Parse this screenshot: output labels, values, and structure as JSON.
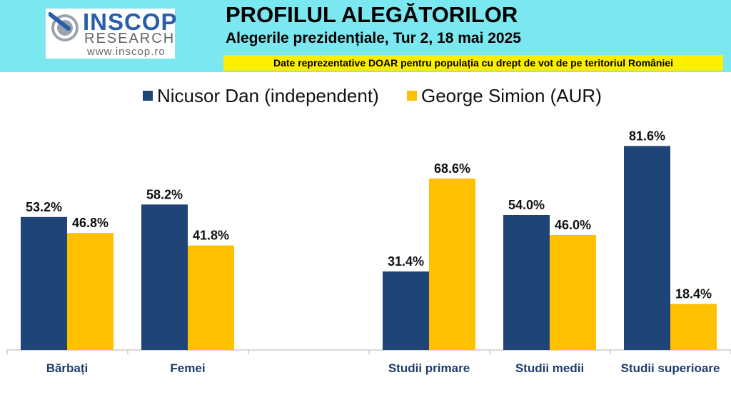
{
  "logo": {
    "name": "INSCOP",
    "sub": "RESEARCH",
    "url": "www.inscop.ro"
  },
  "header": {
    "title": "PROFILUL ALEGĂTORILOR",
    "subtitle": "Alegerile prezidențiale, Tur 2, 18 mai 2025",
    "banner": "Date reprezentative DOAR pentru populația cu drept de vot de pe teritoriul României"
  },
  "colors": {
    "header_bg": "#7be7f0",
    "banner_bg": "#ffee00",
    "series_1": "#1f4478",
    "series_2": "#ffc000",
    "axis": "#b0b0b0",
    "category_text": "#1f3d6b"
  },
  "chart_data": {
    "type": "bar",
    "categories": [
      "Bărbați",
      "Femei",
      "",
      "Studii primare",
      "Studii medii",
      "Studii superioare"
    ],
    "series": [
      {
        "name": "Nicusor Dan (independent)",
        "values": [
          53.2,
          58.2,
          null,
          31.4,
          54.0,
          81.6
        ],
        "labels": [
          "53.2%",
          "58.2%",
          "",
          "31.4%",
          "54.0%",
          "81.6%"
        ]
      },
      {
        "name": "George Simion (AUR)",
        "values": [
          46.8,
          41.8,
          null,
          68.6,
          46.0,
          18.4
        ],
        "labels": [
          "46.8%",
          "41.8%",
          "",
          "68.6%",
          "46.0%",
          "18.4%"
        ]
      }
    ],
    "ylim": [
      0,
      100
    ],
    "grid": false,
    "legend_position": "top"
  }
}
